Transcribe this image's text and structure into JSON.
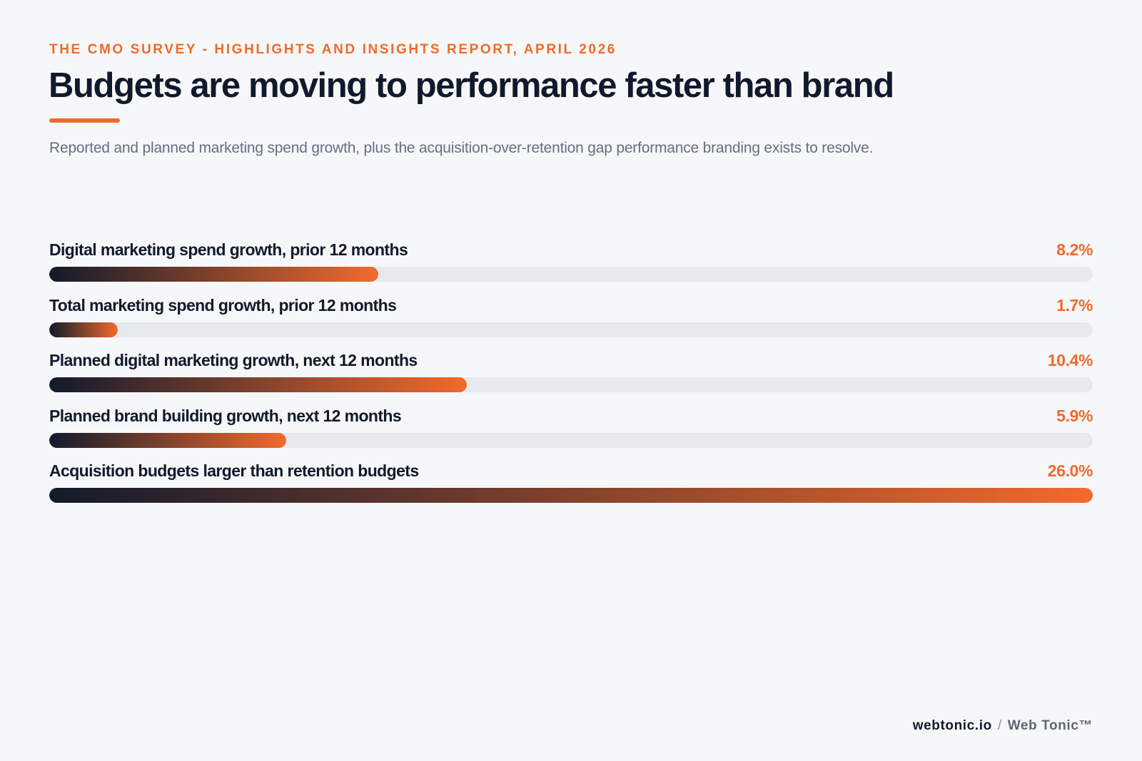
{
  "header": {
    "eyebrow": "THE CMO SURVEY - HIGHLIGHTS AND INSIGHTS REPORT, APRIL 2026",
    "title": "Budgets are moving to performance faster than brand",
    "subtitle": "Reported and planned marketing spend growth, plus the acquisition-over-retention gap performance branding exists to resolve."
  },
  "chart_data": {
    "type": "bar",
    "orientation": "horizontal",
    "categories": [
      "Digital marketing spend growth, prior 12 months",
      "Total marketing spend growth, prior 12 months",
      "Planned digital marketing growth, next 12 months",
      "Planned brand building growth, next 12 months",
      "Acquisition budgets larger than retention budgets"
    ],
    "values": [
      8.2,
      1.7,
      10.4,
      5.9,
      26.0
    ],
    "value_labels": [
      "8.2%",
      "1.7%",
      "10.4%",
      "5.9%",
      "26.0%"
    ],
    "xlim": [
      0,
      26.0
    ],
    "grid": false
  },
  "footer": {
    "site": "webtonic.io",
    "separator": "/",
    "brand": "Web Tonic™"
  },
  "colors": {
    "accent": "#f06a2c",
    "navy": "#111a2c",
    "track": "#e6e9ee",
    "background": "#f6f7f9"
  }
}
